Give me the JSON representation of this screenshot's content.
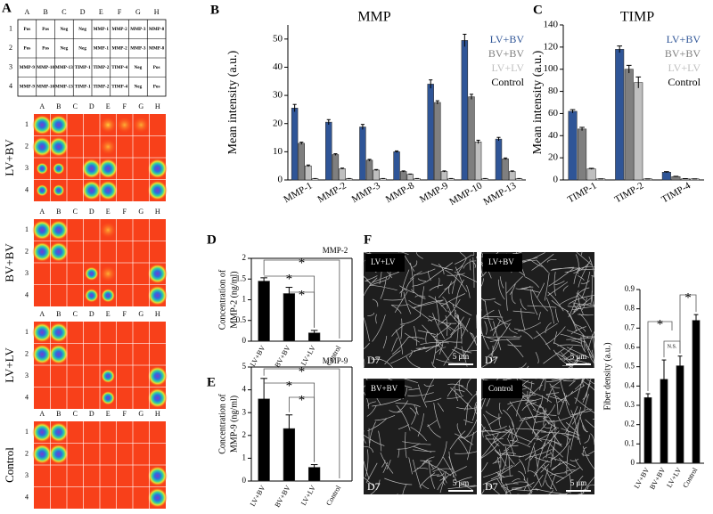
{
  "panel_labels": [
    "A",
    "B",
    "C",
    "D",
    "E",
    "F"
  ],
  "array_table": {
    "columns": [
      "A",
      "B",
      "C",
      "D",
      "E",
      "F",
      "G",
      "H"
    ],
    "row_labels": [
      "1",
      "2",
      "3",
      "4"
    ],
    "rows": [
      [
        "Pos",
        "Pos",
        "Neg",
        "Neg",
        "MMP-1",
        "MMP-2",
        "MMP-3",
        "MMP-8"
      ],
      [
        "Pos",
        "Pos",
        "Neg",
        "Neg",
        "MMP-1",
        "MMP-2",
        "MMP-3",
        "MMP-8"
      ],
      [
        "MMP-9",
        "MMP-10",
        "MMP-13",
        "TIMP-1",
        "TIMP-2",
        "TIMP-4",
        "Neg",
        "Pos"
      ],
      [
        "MMP-9",
        "MMP-10",
        "MMP-13",
        "TIMP-1",
        "TIMP-2",
        "TIMP-4",
        "Neg",
        "Pos"
      ]
    ]
  },
  "blots": [
    {
      "label": "LV+BV",
      "columns": [
        "A",
        "B",
        "C",
        "D",
        "E",
        "F",
        "G",
        "H"
      ],
      "rows": [
        "1",
        "2",
        "3",
        "4"
      ]
    },
    {
      "label": "BV+BV",
      "columns": [
        "A",
        "B",
        "C",
        "D",
        "E",
        "F",
        "G",
        "H"
      ],
      "rows": [
        "1",
        "2",
        "3",
        "4"
      ]
    },
    {
      "label": "LV+LV",
      "columns": [
        "A",
        "B",
        "C",
        "D",
        "E",
        "F",
        "G",
        "H"
      ],
      "rows": [
        "1",
        "2",
        "3",
        "4"
      ]
    },
    {
      "label": "Control",
      "columns": [
        "A",
        "B",
        "C",
        "D",
        "E",
        "F",
        "G",
        "H"
      ],
      "rows": [
        "1",
        "2",
        "3",
        "4"
      ]
    }
  ],
  "sem": [
    {
      "label": "LV+LV",
      "day": "D7",
      "scale": "5 μm"
    },
    {
      "label": "LV+BV",
      "day": "D7",
      "scale": "5 μm"
    },
    {
      "label": "BV+BV",
      "day": "D7",
      "scale": "5 μm"
    },
    {
      "label": "Control",
      "day": "D7",
      "scale": "5 μm"
    }
  ],
  "chart_data": [
    {
      "type": "bar",
      "title": "MMP",
      "ylabel": "Mean intensity (a.u.)",
      "categories": [
        "MMP-1",
        "MMP-2",
        "MMP-3",
        "MMP-8",
        "MMP-9",
        "MMP-10",
        "MMP-13"
      ],
      "series": [
        {
          "name": "LV+BV",
          "color": "#2f5597",
          "values": [
            25.5,
            20.5,
            18.8,
            10,
            34,
            49.5,
            14.5
          ],
          "errors": [
            1.3,
            0.9,
            0.9,
            0.3,
            1.5,
            2.2,
            0.6
          ]
        },
        {
          "name": "BV+BV",
          "color": "#7f7f7f",
          "values": [
            13,
            9,
            7,
            3,
            27.5,
            29.5,
            7.5
          ],
          "errors": [
            0.4,
            0.3,
            0.3,
            0.2,
            0.6,
            0.9,
            0.3
          ]
        },
        {
          "name": "LV+LV",
          "color": "#bfbfbf",
          "values": [
            5,
            4,
            3.5,
            2,
            3,
            13.5,
            3
          ],
          "errors": [
            0.3,
            0.2,
            0.2,
            0.1,
            0.2,
            0.6,
            0.2
          ]
        },
        {
          "name": "Control",
          "color": "#ffffff",
          "values": [
            0.5,
            0.5,
            0.5,
            0.5,
            0.5,
            0.5,
            0.5
          ],
          "errors": [
            0,
            0,
            0,
            0,
            0,
            0,
            0
          ]
        }
      ],
      "ylim": [
        0,
        55
      ],
      "yticks": [
        0,
        10,
        20,
        30,
        40,
        50
      ],
      "legend": "upper right"
    },
    {
      "type": "bar",
      "title": "TIMP",
      "ylabel": "Mean intensity (a.u.)",
      "categories": [
        "TIMP-1",
        "TIMP-2",
        "TIMP-4"
      ],
      "series": [
        {
          "name": "LV+BV",
          "color": "#2f5597",
          "values": [
            62,
            118,
            7
          ],
          "errors": [
            1.5,
            3,
            0.5
          ]
        },
        {
          "name": "BV+BV",
          "color": "#7f7f7f",
          "values": [
            46,
            100,
            3
          ],
          "errors": [
            1.5,
            3.5,
            0.3
          ]
        },
        {
          "name": "LV+LV",
          "color": "#bfbfbf",
          "values": [
            10,
            88,
            1
          ],
          "errors": [
            0.5,
            5,
            0.2
          ]
        },
        {
          "name": "Control",
          "color": "#ffffff",
          "values": [
            1,
            1,
            1
          ],
          "errors": [
            0,
            0,
            0
          ]
        }
      ],
      "ylim": [
        0,
        140
      ],
      "yticks": [
        0,
        20,
        40,
        60,
        80,
        100,
        120,
        140
      ],
      "legend": "upper right"
    },
    {
      "type": "bar",
      "title": "MMP-2",
      "ylabel": [
        "Concentration of",
        "MMP-2 (ng/ml)"
      ],
      "categories": [
        "LV+BV",
        "BV+BV",
        "LV+LV",
        "Control"
      ],
      "values": [
        1.45,
        1.15,
        0.2,
        0
      ],
      "errors": [
        0.08,
        0.15,
        0.06,
        0
      ],
      "color": "#000000",
      "ylim": [
        0,
        2
      ],
      "yticks": [
        0,
        0.5,
        1,
        1.5,
        2
      ],
      "significance": [
        "*",
        "*",
        "*"
      ]
    },
    {
      "type": "bar",
      "title": "MMP-9",
      "ylabel": [
        "Concentration of",
        "MMP-9 (ng/ml)"
      ],
      "categories": [
        "LV+BV",
        "BV+BV",
        "LV+LV",
        "Control"
      ],
      "values": [
        3.6,
        2.3,
        0.6,
        0
      ],
      "errors": [
        0.9,
        0.6,
        0.12,
        0
      ],
      "color": "#000000",
      "ylim": [
        0,
        5
      ],
      "yticks": [
        0,
        1,
        2,
        3,
        4,
        5
      ],
      "significance": [
        "*",
        "*",
        "*"
      ]
    },
    {
      "type": "bar",
      "ylabel": "Fiber density (a.u.)",
      "categories": [
        "LV+BV",
        "BV+BV",
        "LV+LV",
        "Control"
      ],
      "values": [
        0.34,
        0.435,
        0.505,
        0.74
      ],
      "errors": [
        0.02,
        0.1,
        0.05,
        0.03
      ],
      "color": "#000000",
      "ylim": [
        0,
        0.9
      ],
      "yticks": [
        0,
        0.1,
        0.2,
        0.3,
        0.4,
        0.5,
        0.6,
        0.7,
        0.8,
        0.9
      ],
      "significance": [
        "N.S.",
        "*",
        "*"
      ]
    }
  ]
}
